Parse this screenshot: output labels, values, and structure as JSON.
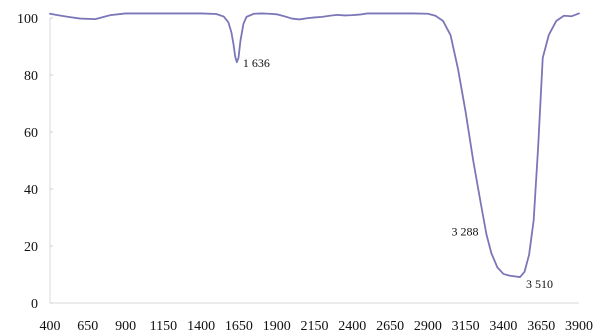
{
  "chart_data": {
    "type": "line",
    "title": "",
    "xlabel": "",
    "ylabel": "",
    "xlim": [
      400,
      3900
    ],
    "ylim": [
      0,
      100
    ],
    "grid": false,
    "x_ticks": [
      400,
      650,
      900,
      1150,
      1400,
      1650,
      1900,
      2150,
      2400,
      2650,
      2900,
      3150,
      3400,
      3650,
      3900
    ],
    "y_ticks": [
      0,
      20,
      40,
      60,
      80,
      100
    ],
    "series": [
      {
        "color": "#7b76b8",
        "x": [
          400,
          450,
          520,
          600,
          700,
          800,
          900,
          1000,
          1100,
          1200,
          1300,
          1400,
          1500,
          1550,
          1580,
          1600,
          1615,
          1625,
          1636,
          1647,
          1660,
          1680,
          1700,
          1750,
          1800,
          1850,
          1900,
          1950,
          2000,
          2050,
          2100,
          2150,
          2200,
          2250,
          2300,
          2350,
          2400,
          2450,
          2500,
          2600,
          2700,
          2800,
          2900,
          2950,
          3000,
          3050,
          3100,
          3150,
          3200,
          3250,
          3288,
          3320,
          3360,
          3400,
          3440,
          3480,
          3510,
          3540,
          3570,
          3600,
          3630,
          3660,
          3700,
          3750,
          3800,
          3850,
          3900
        ],
        "y": [
          101.5,
          101.0,
          100.4,
          99.8,
          99.6,
          101.0,
          101.6,
          101.6,
          101.6,
          101.6,
          101.6,
          101.6,
          101.4,
          100.5,
          98.5,
          95.0,
          90.5,
          86.5,
          84.5,
          86.0,
          92.0,
          98.0,
          100.4,
          101.5,
          101.6,
          101.5,
          101.3,
          100.6,
          99.8,
          99.5,
          99.9,
          100.2,
          100.4,
          100.8,
          101.1,
          100.9,
          101.0,
          101.2,
          101.6,
          101.6,
          101.6,
          101.6,
          101.5,
          100.8,
          99.0,
          94.0,
          82.0,
          67.0,
          50.0,
          35.0,
          24.0,
          17.5,
          12.5,
          10.2,
          9.6,
          9.3,
          9.1,
          11.0,
          17.0,
          29.0,
          55.0,
          86.0,
          94.0,
          99.0,
          100.8,
          100.6,
          101.6
        ]
      }
    ],
    "annotations": [
      {
        "label": "1 636",
        "x": 1636,
        "y": 84.5
      },
      {
        "label": "3 288",
        "x": 3288,
        "y": 24.0
      },
      {
        "label": "3 510",
        "x": 3510,
        "y": 9.1
      }
    ]
  }
}
